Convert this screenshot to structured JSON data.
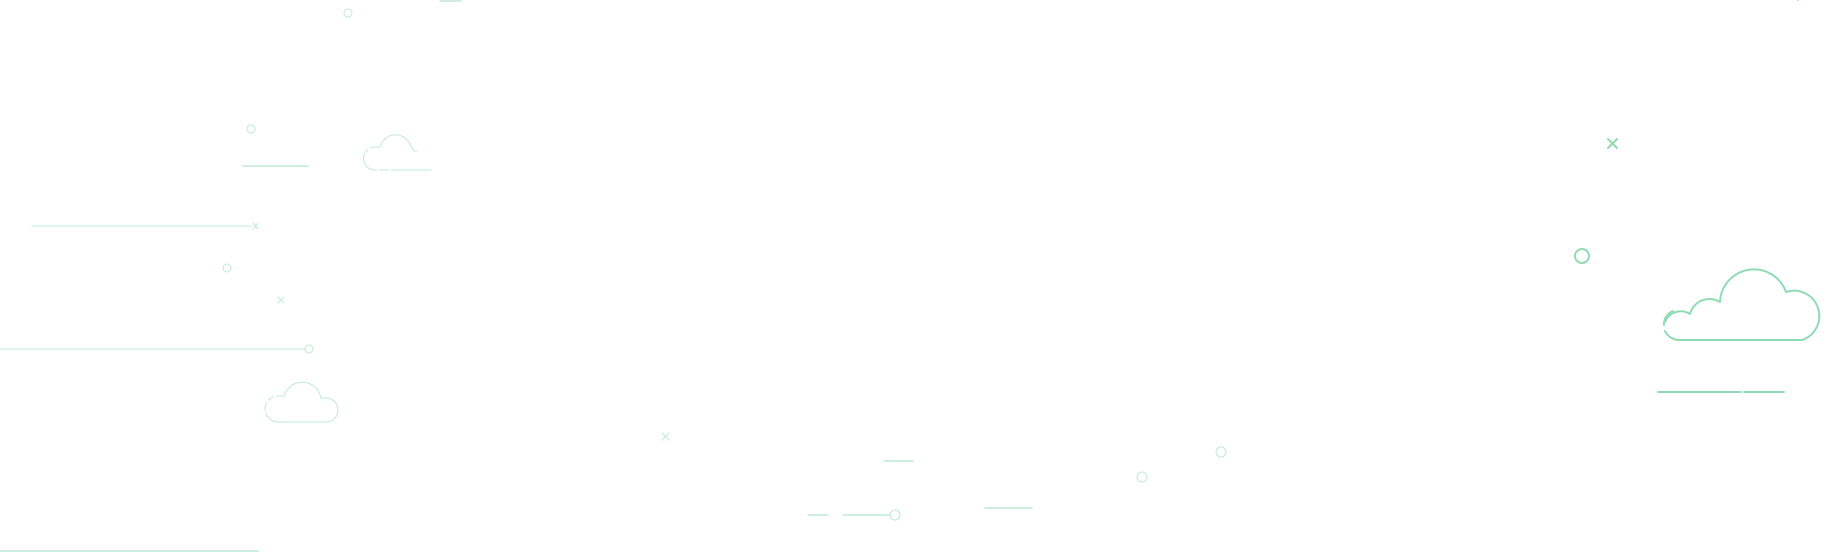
{
  "colors": {
    "background": "#ffffff",
    "line_light": "#bfe9d6",
    "line_mid": "#a6e0c4",
    "line_dark": "#8fdcb4"
  },
  "icons": {
    "cloud": "cloud-icon",
    "circle": "circle-icon",
    "cross": "cross-icon"
  }
}
